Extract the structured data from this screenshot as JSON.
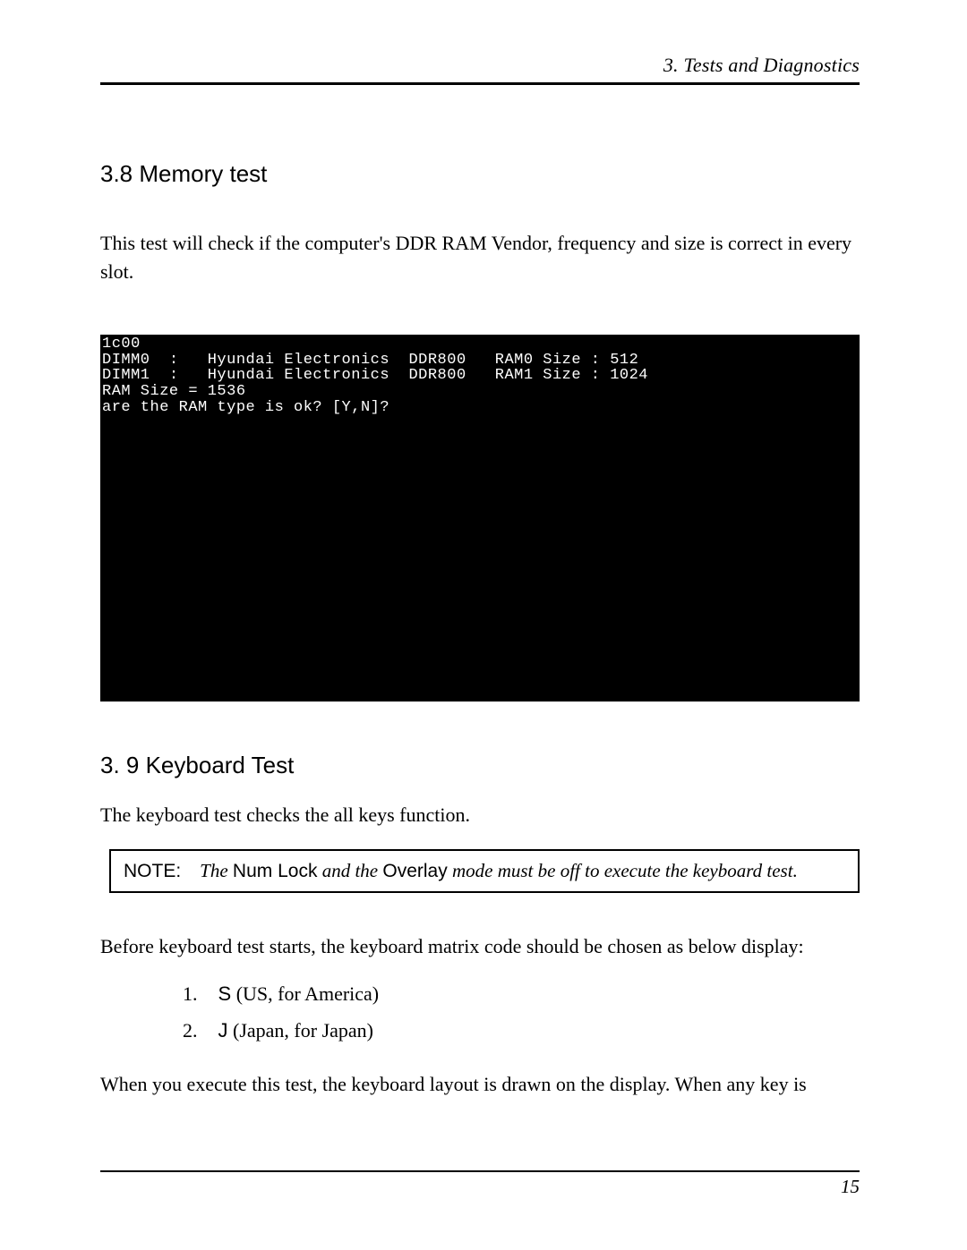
{
  "header": {
    "running_title": "3.  Tests and Diagnostics"
  },
  "section_a": {
    "heading": "3.8  Memory test",
    "intro": "This test will check if the computer's DDR RAM Vendor, frequency and size is correct in every slot."
  },
  "terminal": {
    "bg_color": "#000000",
    "fg_color": "#ffffff",
    "lines": [
      "1c00",
      "DIMM0  :   Hyundai Electronics  DDR800   RAM0 Size : 512",
      "DIMM1  :   Hyundai Electronics  DDR800   RAM1 Size : 1024",
      "RAM Size = 1536",
      "are the RAM type is ok? [Y,N]?"
    ]
  },
  "section_b": {
    "heading": "3. 9 Keyboard Test",
    "intro": "The keyboard test checks the all keys function."
  },
  "note": {
    "label": "NOTE:",
    "part1_italic": "The",
    "term1": "Num Lock",
    "part2_italic": "and the",
    "term2": "Overlay",
    "part3_italic": "mode must be off to execute the keyboard test."
  },
  "after_note": "Before keyboard test starts, the keyboard matrix code should be chosen as below display:",
  "list": [
    {
      "num": "1.",
      "key": "S",
      "desc": " (US, for America)"
    },
    {
      "num": "2.",
      "key": "J",
      "desc": " (Japan, for Japan)"
    }
  ],
  "closing": "When you execute this test, the keyboard layout is drawn on the display. When any key is",
  "footer": {
    "page_number": "15"
  }
}
